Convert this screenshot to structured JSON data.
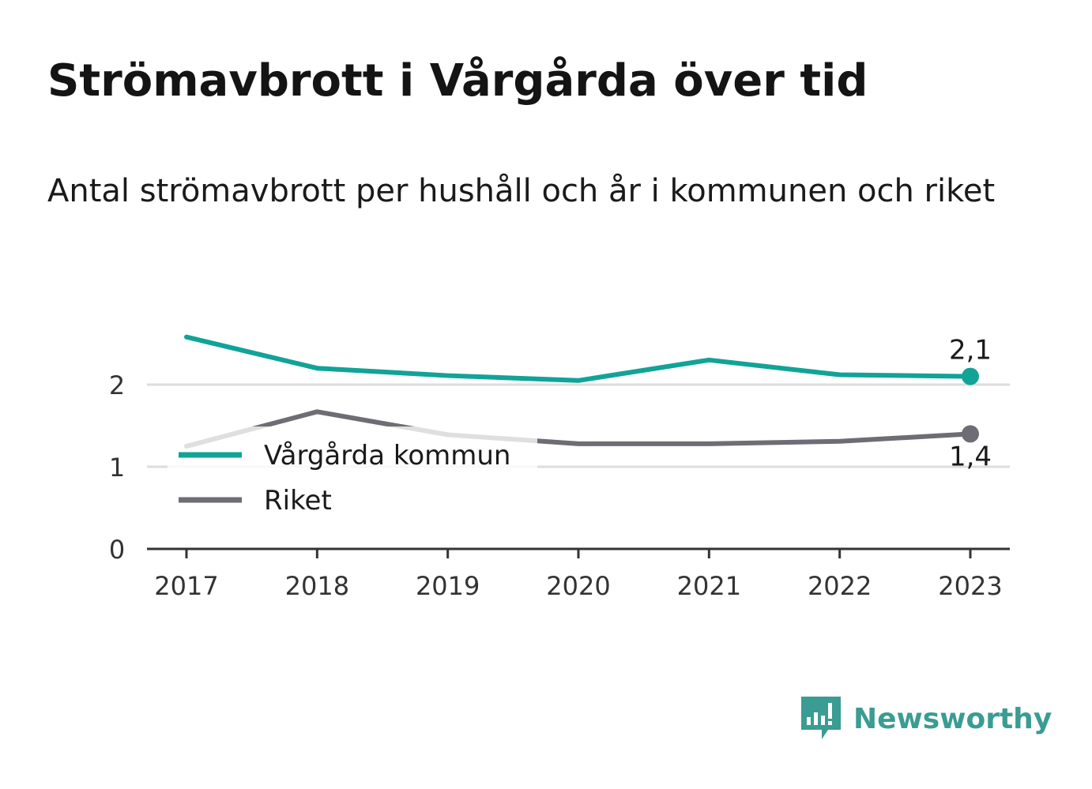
{
  "title": "Strömavbrott i Vårgårda över tid",
  "subtitle": "Antal strömavbrott per hushåll och år i kommunen och riket",
  "brand": {
    "name": "Newsworthy",
    "color": "#3a9c92",
    "icon": "newsworthy-logo-icon"
  },
  "colors": {
    "kommun": "#11a398",
    "riket": "#6e6c74",
    "grid": "#dddddd",
    "axis": "#333333"
  },
  "chart_data": {
    "type": "line",
    "categories": [
      "2017",
      "2018",
      "2019",
      "2020",
      "2021",
      "2022",
      "2023"
    ],
    "series": [
      {
        "name": "Vårgårda kommun",
        "values": [
          2.58,
          2.2,
          2.11,
          2.05,
          2.3,
          2.12,
          2.1
        ],
        "end_label": "2,1"
      },
      {
        "name": "Riket",
        "values": [
          1.25,
          1.67,
          1.39,
          1.28,
          1.28,
          1.31,
          1.4
        ],
        "end_label": "1,4"
      }
    ],
    "yticks": [
      {
        "value": 0,
        "label": "0"
      },
      {
        "value": 1,
        "label": "1"
      },
      {
        "value": 2,
        "label": "2"
      }
    ],
    "ylim": [
      0,
      2.65
    ],
    "grid": true,
    "legend_position": "left"
  }
}
